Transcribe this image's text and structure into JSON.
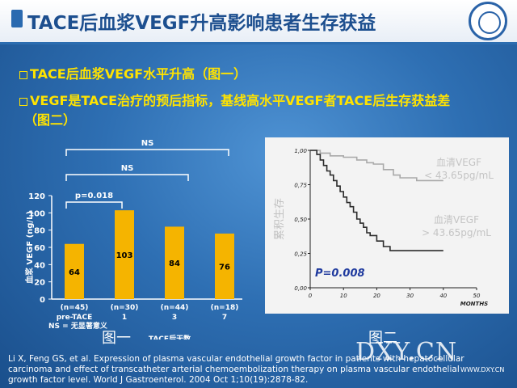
{
  "slide": {
    "title": "TACE后血浆VEGF升高影响患者生存获益",
    "bullet1": "TACE后血浆VEGF水平升高（图一）",
    "bullet2_line1": "VEGF是TACE治疗的预后指标，基线高水平VEGF者TACE后生存获益差",
    "bullet2_line2": "（图二）",
    "figure1_caption": "图一",
    "figure2_caption": "图二",
    "citation": "Li X, Feng GS, et al. Expression of plasma vascular endothelial growth factor in patients with hepatocellular carcinoma and effect of transcatheter arterial chemoembolization therapy on plasma vascular endothelial growth factor level. World J Gastroenterol. 2004 Oct 1;10(19):2878-82.",
    "watermark": "DXY.CN",
    "watermark_sub": "WWW.DXY.CN"
  },
  "chart_data": [
    {
      "type": "bar",
      "ylabel": "血浆 VEGF (ng/L)",
      "xlabel": "TACE后天数",
      "ylim": [
        0,
        120
      ],
      "yticks": [
        0,
        20,
        40,
        60,
        80,
        100,
        120
      ],
      "categories": [
        "pre-TACE",
        "1",
        "3",
        "7"
      ],
      "n_labels": [
        "(n=45)",
        "(n=30)",
        "(n=44)",
        "(n=18)"
      ],
      "values": [
        64,
        103,
        84,
        76
      ],
      "bar_color": "#f5b400",
      "annotations": [
        "p=0.018",
        "NS",
        "NS"
      ],
      "footnote": "NS = 无显著意义"
    },
    {
      "type": "line",
      "subtype": "kaplan-meier",
      "xlim": [
        0,
        50
      ],
      "ylim": [
        0,
        1
      ],
      "xticks": [
        0,
        10,
        20,
        30,
        40,
        50
      ],
      "yticks": [
        "0,00",
        "0,25",
        "0,50",
        "0,75",
        "1,00"
      ],
      "xlabel": "MONTHS",
      "ylabel": "累积生存",
      "p_value_label": "P=0.008",
      "series": [
        {
          "name": "血清VEGF < 43.65pg/mL",
          "color": "#a9a9a9",
          "points": [
            [
              0,
              1.0
            ],
            [
              3,
              1.0
            ],
            [
              3,
              0.98
            ],
            [
              6,
              0.98
            ],
            [
              6,
              0.96
            ],
            [
              10,
              0.96
            ],
            [
              10,
              0.95
            ],
            [
              14,
              0.95
            ],
            [
              14,
              0.93
            ],
            [
              17,
              0.93
            ],
            [
              17,
              0.91
            ],
            [
              19,
              0.91
            ],
            [
              19,
              0.9
            ],
            [
              22,
              0.9
            ],
            [
              22,
              0.86
            ],
            [
              25,
              0.86
            ],
            [
              25,
              0.82
            ],
            [
              27,
              0.82
            ],
            [
              27,
              0.8
            ],
            [
              32,
              0.8
            ],
            [
              32,
              0.78
            ],
            [
              40,
              0.78
            ]
          ]
        },
        {
          "name": "血清VEGF > 43.65pg/mL",
          "color": "#2b2b2b",
          "points": [
            [
              0,
              1.0
            ],
            [
              2,
              1.0
            ],
            [
              2,
              0.97
            ],
            [
              3,
              0.97
            ],
            [
              3,
              0.93
            ],
            [
              4,
              0.93
            ],
            [
              4,
              0.89
            ],
            [
              5,
              0.89
            ],
            [
              5,
              0.85
            ],
            [
              6,
              0.85
            ],
            [
              6,
              0.82
            ],
            [
              7,
              0.82
            ],
            [
              7,
              0.78
            ],
            [
              8,
              0.78
            ],
            [
              8,
              0.74
            ],
            [
              9,
              0.74
            ],
            [
              9,
              0.7
            ],
            [
              10,
              0.7
            ],
            [
              10,
              0.66
            ],
            [
              11,
              0.66
            ],
            [
              11,
              0.62
            ],
            [
              12,
              0.62
            ],
            [
              12,
              0.59
            ],
            [
              13,
              0.59
            ],
            [
              13,
              0.55
            ],
            [
              14,
              0.55
            ],
            [
              14,
              0.5
            ],
            [
              15,
              0.5
            ],
            [
              15,
              0.47
            ],
            [
              16,
              0.47
            ],
            [
              16,
              0.44
            ],
            [
              17,
              0.44
            ],
            [
              17,
              0.4
            ],
            [
              18,
              0.4
            ],
            [
              18,
              0.38
            ],
            [
              20,
              0.38
            ],
            [
              20,
              0.34
            ],
            [
              22,
              0.34
            ],
            [
              22,
              0.3
            ],
            [
              24,
              0.3
            ],
            [
              24,
              0.27
            ],
            [
              40,
              0.27
            ]
          ]
        }
      ]
    }
  ]
}
